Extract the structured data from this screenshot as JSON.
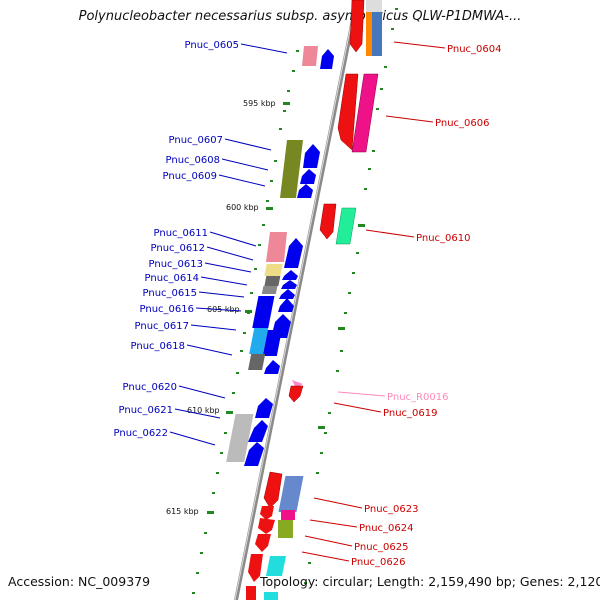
{
  "title": "Polynucleobacter necessarius subsp. asymbioticus QLW-P1DMWA-...",
  "accession": "Accession: NC_009379",
  "topology": "Topology: circular; Length: 2,159,490 bp; Genes: 2,120",
  "colors": {
    "left_label": "#0000bb",
    "right_label": "#cc0000",
    "rna_label": "#ff88bb",
    "backbone": "#8a8a8a",
    "tick": "#228822"
  },
  "ticks": [
    "595 kbp",
    "600 kbp",
    "605 kbp",
    "610 kbp",
    "615 kbp"
  ],
  "left_genes": [
    "Pnuc_0605",
    "Pnuc_0607",
    "Pnuc_0608",
    "Pnuc_0609",
    "Pnuc_0611",
    "Pnuc_0612",
    "Pnuc_0613",
    "Pnuc_0614",
    "Pnuc_0615",
    "Pnuc_0616",
    "Pnuc_0617",
    "Pnuc_0618",
    "Pnuc_0620",
    "Pnuc_0621",
    "Pnuc_0622"
  ],
  "right_genes": [
    "Pnuc_0604",
    "Pnuc_0606",
    "Pnuc_0610",
    "Pnuc_R0016",
    "Pnuc_0619",
    "Pnuc_0623",
    "Pnuc_0624",
    "Pnuc_0625",
    "Pnuc_0626"
  ]
}
